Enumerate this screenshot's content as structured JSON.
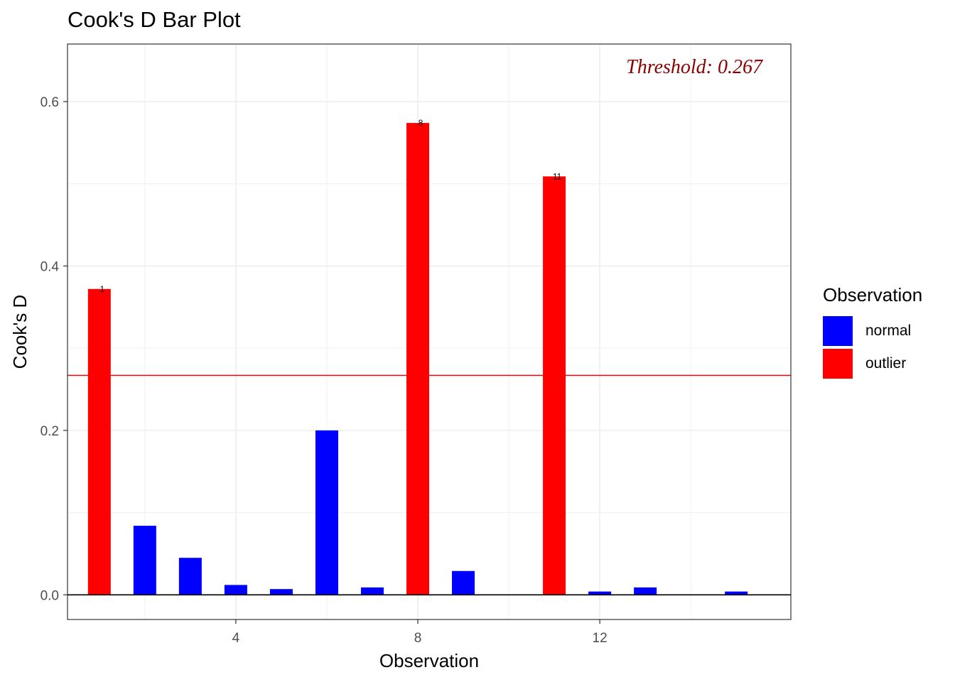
{
  "chart_data": {
    "type": "bar",
    "title": "Cook's D Bar Plot",
    "xlabel": "Observation",
    "ylabel": "Cook's D",
    "x": [
      1,
      2,
      3,
      4,
      5,
      6,
      7,
      8,
      9,
      10,
      11,
      12,
      13,
      14,
      15
    ],
    "values": [
      0.372,
      0.084,
      0.045,
      0.012,
      0.007,
      0.2,
      0.009,
      0.574,
      0.029,
      0.0,
      0.509,
      0.004,
      0.009,
      0.0,
      0.004
    ],
    "groups": [
      "outlier",
      "normal",
      "normal",
      "normal",
      "normal",
      "normal",
      "normal",
      "outlier",
      "normal",
      "normal",
      "outlier",
      "normal",
      "normal",
      "normal",
      "normal"
    ],
    "xlim": [
      0.3,
      16.2
    ],
    "ylim": [
      -0.03,
      0.67
    ],
    "xticks": [
      4,
      8,
      12
    ],
    "yticks": [
      0.0,
      0.2,
      0.4,
      0.6
    ],
    "ytick_labels": [
      "0.0",
      "0.2",
      "0.4",
      "0.6"
    ],
    "threshold": 0.267,
    "threshold_label": "Threshold: 0.267",
    "bar_labels": [
      {
        "x": 1,
        "text": "1"
      },
      {
        "x": 8,
        "text": "8"
      },
      {
        "x": 11,
        "text": "11"
      }
    ],
    "legend": {
      "title": "Observation",
      "placement": "right",
      "items": [
        {
          "label": "normal",
          "color": "#0000ff"
        },
        {
          "label": "outlier",
          "color": "#ff0000"
        }
      ]
    },
    "colors": {
      "normal": "#0000ff",
      "outlier": "#ff0000",
      "threshold_line": "#ff0000",
      "threshold_text": "#8b0000"
    },
    "grid": true
  }
}
